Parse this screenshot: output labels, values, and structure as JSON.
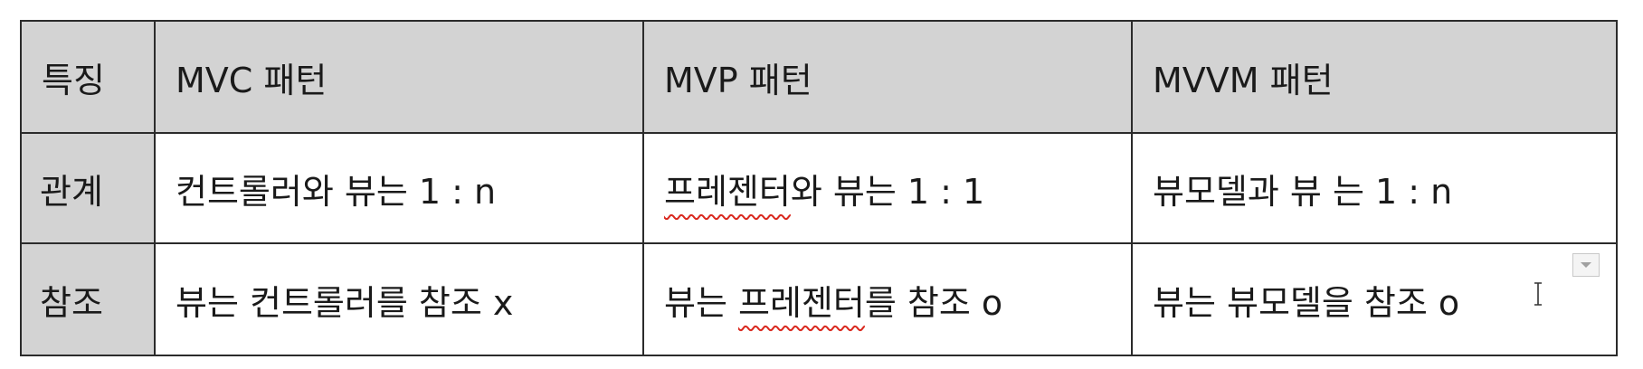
{
  "table": {
    "header": {
      "feature": "특징",
      "mvc": "MVC 패턴",
      "mvp": "MVP 패턴",
      "mvvm": "MVVM 패턴"
    },
    "rows": [
      {
        "feature": "관계",
        "mvc": "컨트롤러와 뷰는 1 : n",
        "mvp_spell": "프레젠터",
        "mvp_rest": "와 뷰는 1 : 1",
        "mvvm": "뷰모델과 뷰 는 1 : n"
      },
      {
        "feature": "참조",
        "mvc": "뷰는 컨트롤러를 참조 x",
        "mvp_pre": "뷰는 ",
        "mvp_spell": "프레젠터",
        "mvp_rest": "를 참조 o",
        "mvvm": "뷰는 뷰모델을 참조 o"
      }
    ]
  },
  "colors": {
    "header_bg": "#d3d3d3",
    "border": "#2b2b2b",
    "spellcheck_underline": "#d9281e"
  },
  "icons": {
    "cell_dropdown": "chevron-down-icon",
    "cursor": "text-cursor-icon"
  }
}
